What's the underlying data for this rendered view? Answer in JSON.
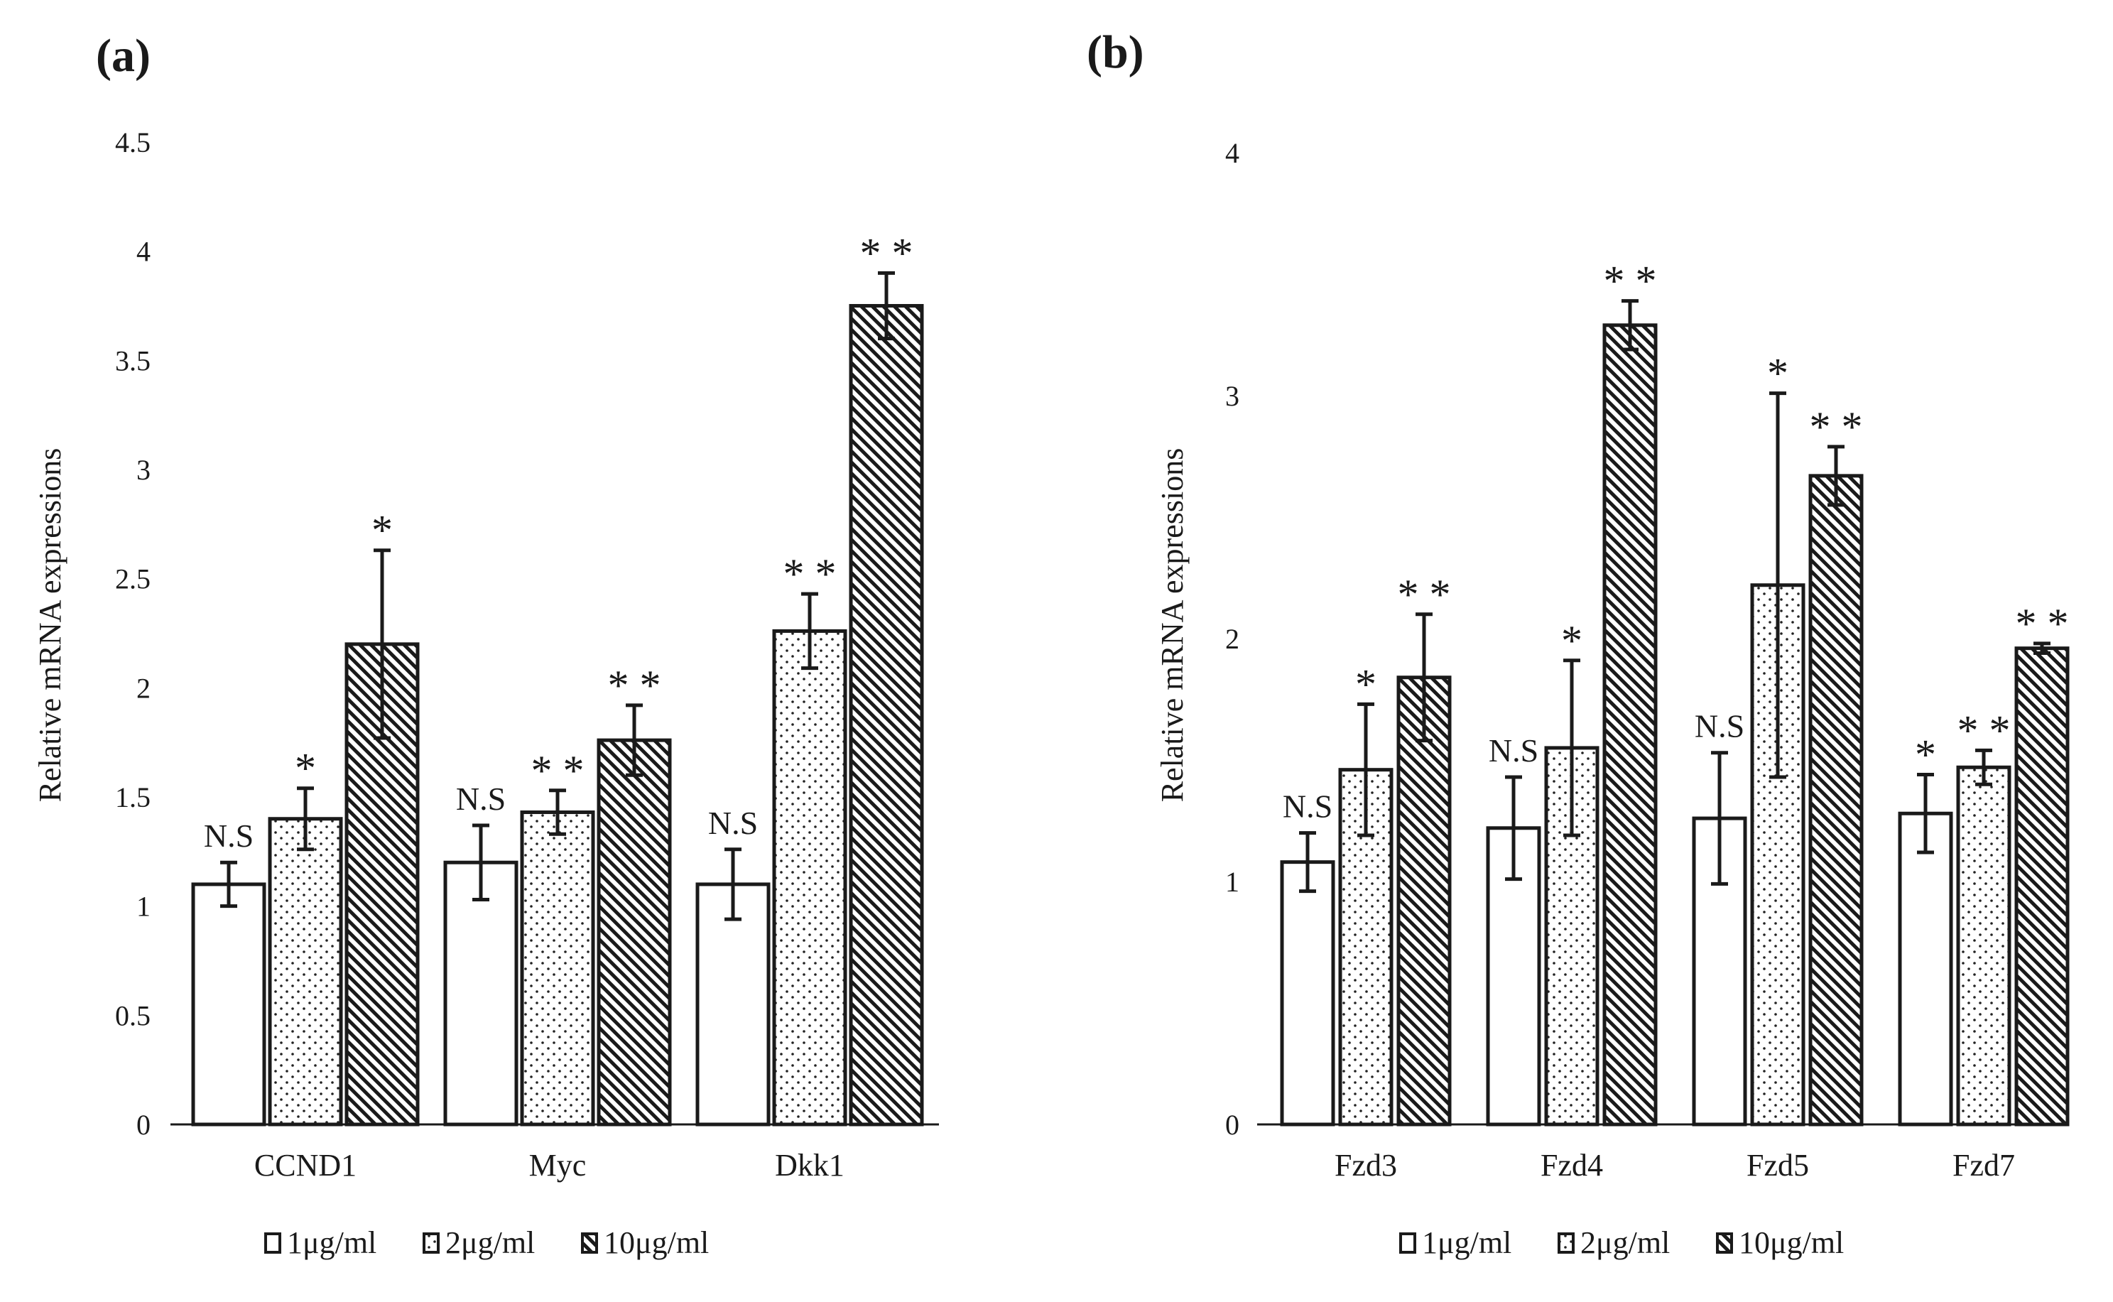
{
  "chart_data": [
    {
      "type": "bar",
      "panel_label": "(a)",
      "ylabel": "Relative mRNA expressions",
      "xlabel": "",
      "ylim": [
        0,
        4.5
      ],
      "yticks": [
        0,
        0.5,
        1,
        1.5,
        2,
        2.5,
        3,
        3.5,
        4,
        4.5
      ],
      "ytick_labels": [
        "0",
        "0.5",
        "1",
        "1.5",
        "2",
        "2.5",
        "3",
        "3.5",
        "4",
        "4.5"
      ],
      "grid": false,
      "legend_position": "bottom",
      "categories": [
        "CCND1",
        "Myc",
        "Dkk1"
      ],
      "series": [
        {
          "name": "1μg/ml",
          "pattern": "plain",
          "values": [
            1.1,
            1.2,
            1.1
          ],
          "errors": [
            0.1,
            0.17,
            0.16
          ],
          "significance": [
            "N.S",
            "N.S",
            "N.S"
          ]
        },
        {
          "name": "2μg/ml",
          "pattern": "dots",
          "values": [
            1.4,
            1.43,
            2.26
          ],
          "errors": [
            0.14,
            0.1,
            0.17
          ],
          "significance": [
            "*",
            "**",
            "**"
          ]
        },
        {
          "name": "10μg/ml",
          "pattern": "hatch",
          "values": [
            2.2,
            1.76,
            3.75
          ],
          "errors": [
            0.43,
            0.16,
            0.15
          ],
          "significance": [
            "*",
            "**",
            "**"
          ]
        }
      ]
    },
    {
      "type": "bar",
      "panel_label": "(b)",
      "ylabel": "Relative mRNA expressions",
      "xlabel": "",
      "ylim": [
        0,
        4
      ],
      "yticks": [
        0,
        1,
        2,
        3,
        4
      ],
      "ytick_labels": [
        "0",
        "1",
        "2",
        "3",
        "4"
      ],
      "grid": false,
      "legend_position": "bottom",
      "categories": [
        "Fzd3",
        "Fzd4",
        "Fzd5",
        "Fzd7"
      ],
      "series": [
        {
          "name": "1μg/ml",
          "pattern": "plain",
          "values": [
            1.08,
            1.22,
            1.26,
            1.28
          ],
          "errors": [
            0.12,
            0.21,
            0.27,
            0.16
          ],
          "significance": [
            "N.S",
            "N.S",
            "N.S",
            "*"
          ]
        },
        {
          "name": "2μg/ml",
          "pattern": "dots",
          "values": [
            1.46,
            1.55,
            2.22,
            1.47
          ],
          "errors": [
            0.27,
            0.36,
            0.79,
            0.07
          ],
          "significance": [
            "*",
            "*",
            "*",
            "**"
          ]
        },
        {
          "name": "10μg/ml",
          "pattern": "hatch",
          "values": [
            1.84,
            3.29,
            2.67,
            1.96
          ],
          "errors": [
            0.26,
            0.1,
            0.12,
            0.02
          ],
          "significance": [
            "**",
            "**",
            "**",
            "**"
          ]
        }
      ]
    }
  ]
}
